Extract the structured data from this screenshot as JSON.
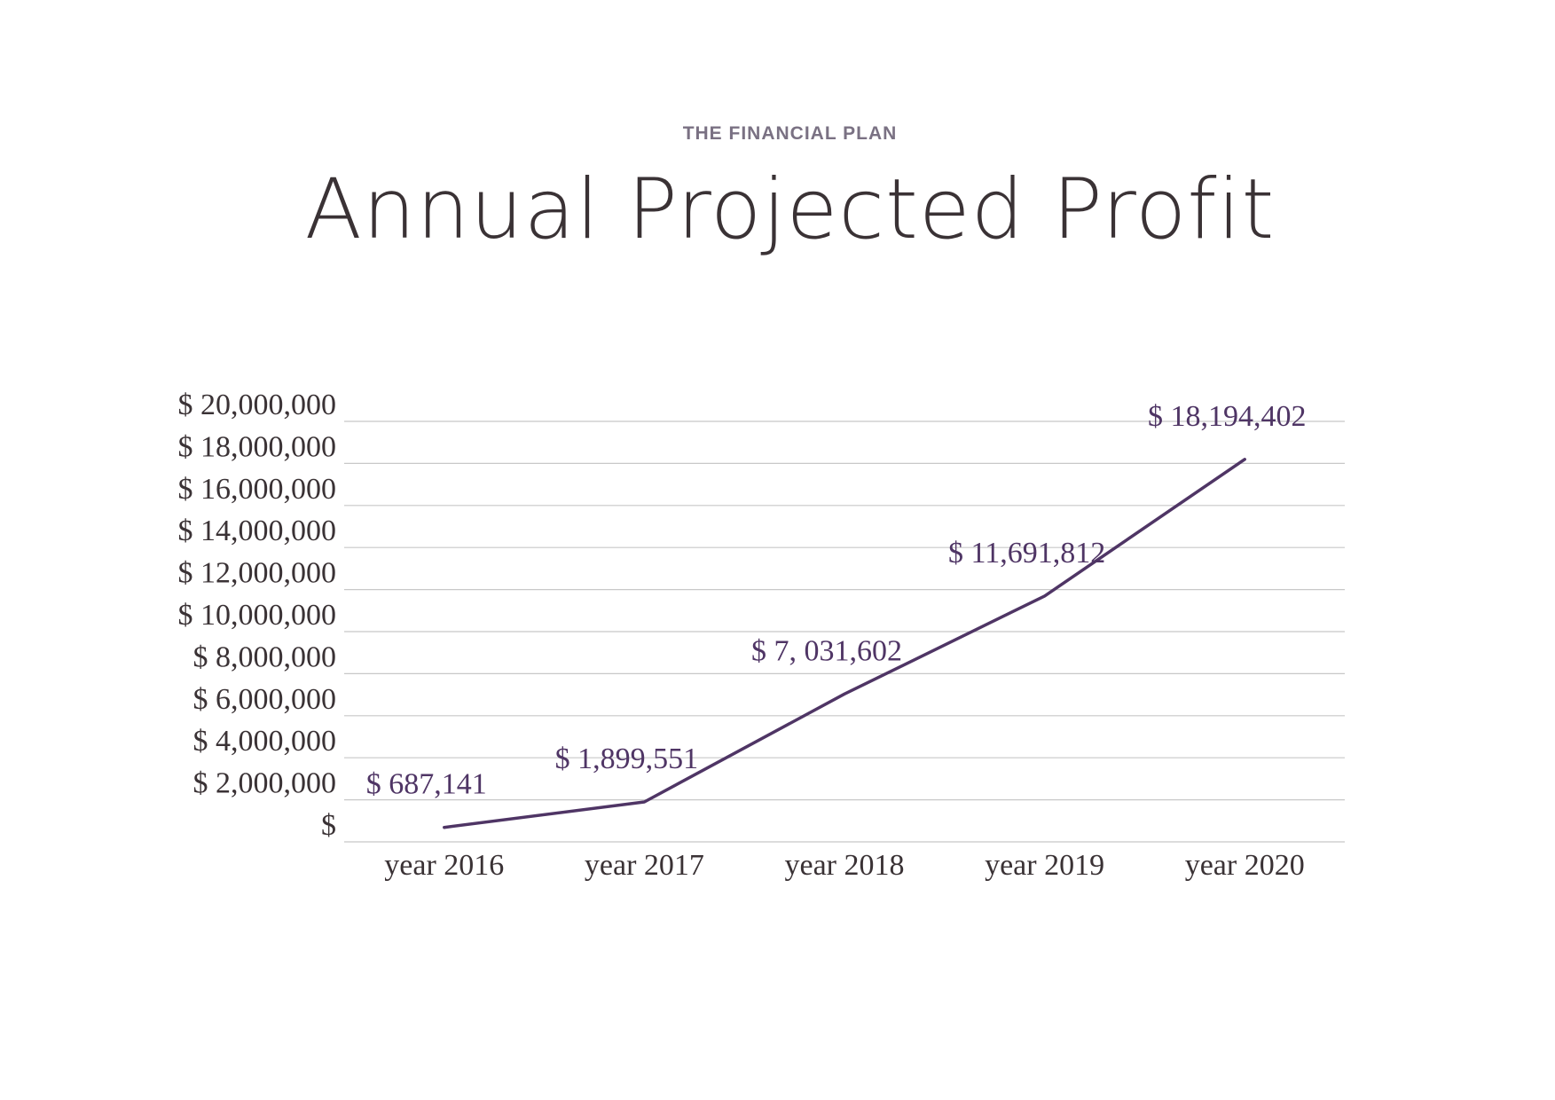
{
  "header": {
    "kicker": "THE FINANCIAL PLAN",
    "title": "Annual Projected Profit"
  },
  "colors": {
    "line": "#4f3565",
    "grid": "#c8c8c8",
    "text": "#3a3235",
    "kicker": "#7a7183"
  },
  "chart_data": {
    "type": "line",
    "title": "Annual Projected Profit",
    "xlabel": "",
    "ylabel": "",
    "categories": [
      "year 2016",
      "year 2017",
      "year 2018",
      "year 2019",
      "year 2020"
    ],
    "series": [
      {
        "values": [
          687141,
          1899551,
          7031602,
          11691812,
          18194402
        ],
        "data_labels": [
          "$ 687,141",
          "$ 1,899,551",
          "$ 7, 031,602",
          "$ 11,691,812",
          "$ 18,194,402"
        ]
      }
    ],
    "ylim": [
      0,
      20000000
    ],
    "y_ticks": [
      0,
      2000000,
      4000000,
      6000000,
      8000000,
      10000000,
      12000000,
      14000000,
      16000000,
      18000000,
      20000000
    ],
    "y_tick_labels": [
      "$",
      "$ 2,000,000",
      "$ 4,000,000",
      "$ 6,000,000",
      "$ 8,000,000",
      "$ 10,000,000",
      "$ 12,000,000",
      "$ 14,000,000",
      "$ 16,000,000",
      "$ 18,000,000",
      "$ 20,000,000"
    ],
    "grid": true,
    "legend": "none"
  }
}
